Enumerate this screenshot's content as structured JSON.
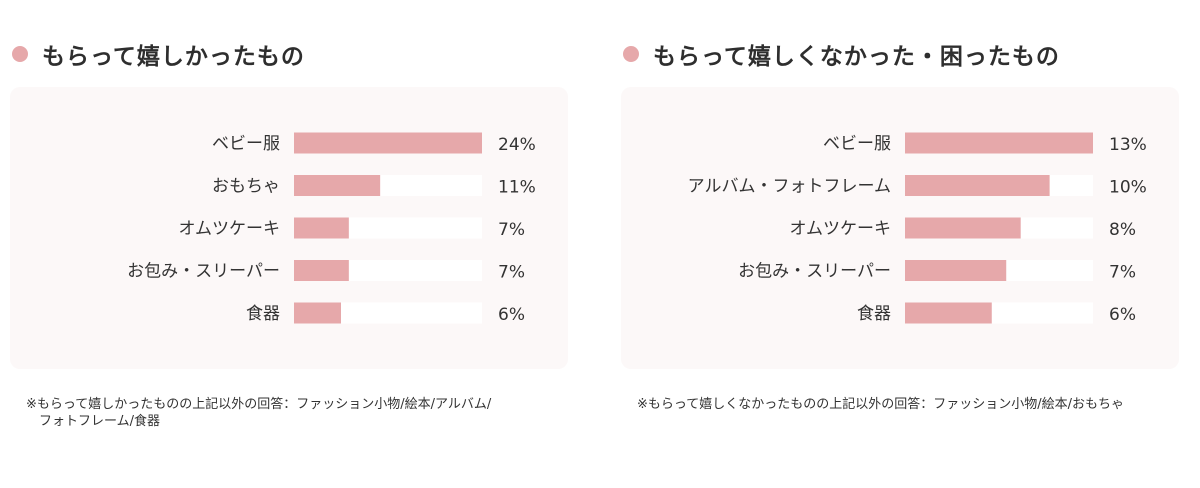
{
  "colors": {
    "accent": "#e6a8aa",
    "card_bg": "#fcf8f8",
    "track": "#ffffff",
    "text": "#333333"
  },
  "panels": [
    {
      "title": "もらって嬉しかったもの",
      "note_lines": [
        "※もらって嬉しかったものの上記以外の回答：ファッション小物/絵本/アルバム/",
        "フォトフレーム/食器"
      ]
    },
    {
      "title": "もらって嬉しくなかった・困ったもの",
      "note_lines": [
        "※もらって嬉しくなかったものの上記以外の回答：ファッション小物/絵本/おもちゃ"
      ]
    }
  ],
  "chart_data": [
    {
      "type": "bar",
      "orientation": "horizontal",
      "title": "もらって嬉しかったもの",
      "categories": [
        "ベビー服",
        "おもちゃ",
        "オムツケーキ",
        "お包み・スリーパー",
        "食器"
      ],
      "values": [
        24,
        11,
        7,
        7,
        6
      ],
      "value_labels": [
        "24%",
        "11%",
        "7%",
        "7%",
        "6%"
      ],
      "xlim": [
        0,
        24
      ],
      "grid": false
    },
    {
      "type": "bar",
      "orientation": "horizontal",
      "title": "もらって嬉しくなかった・困ったもの",
      "categories": [
        "ベビー服",
        "アルバム・フォトフレーム",
        "オムツケーキ",
        "お包み・スリーパー",
        "食器"
      ],
      "values": [
        13,
        10,
        8,
        7,
        6
      ],
      "value_labels": [
        "13%",
        "10%",
        "8%",
        "7%",
        "6%"
      ],
      "xlim": [
        0,
        13
      ],
      "grid": false
    }
  ]
}
